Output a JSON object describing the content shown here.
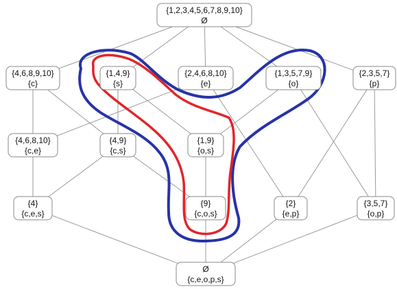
{
  "lattice": {
    "nodes": [
      {
        "id": "top",
        "extent": "{1,2,3,4,5,6,7,8,9,10}",
        "intent": "Ø"
      },
      {
        "id": "c",
        "extent": "{4,6,8,9,10}",
        "intent": "{c}"
      },
      {
        "id": "s",
        "extent": "{1,4,9}",
        "intent": "{s}"
      },
      {
        "id": "e",
        "extent": "{2,4,6,8,10}",
        "intent": "{e}"
      },
      {
        "id": "o",
        "extent": "{1,3,5,7,9}",
        "intent": "{o}"
      },
      {
        "id": "p",
        "extent": "{2,3,5,7}",
        "intent": "{p}"
      },
      {
        "id": "ce",
        "extent": "{4,6,8,10}",
        "intent": "{c,e}"
      },
      {
        "id": "cs",
        "extent": "{4,9}",
        "intent": "{c,s}"
      },
      {
        "id": "os",
        "extent": "{1,9}",
        "intent": "{o,s}"
      },
      {
        "id": "ces",
        "extent": "{4}",
        "intent": "{c,e,s}"
      },
      {
        "id": "cos",
        "extent": "{9}",
        "intent": "{c,o,s}"
      },
      {
        "id": "ep",
        "extent": "{2}",
        "intent": "{e,p}"
      },
      {
        "id": "op",
        "extent": "{3,5,7}",
        "intent": "{o,p}"
      },
      {
        "id": "bot",
        "extent": "Ø",
        "intent": "{c,e,o,p,s}"
      }
    ],
    "edges": [
      [
        "top",
        "c"
      ],
      [
        "top",
        "s"
      ],
      [
        "top",
        "e"
      ],
      [
        "top",
        "o"
      ],
      [
        "top",
        "p"
      ],
      [
        "c",
        "ce"
      ],
      [
        "c",
        "cs"
      ],
      [
        "s",
        "cs"
      ],
      [
        "s",
        "os"
      ],
      [
        "e",
        "ce"
      ],
      [
        "e",
        "ep"
      ],
      [
        "o",
        "os"
      ],
      [
        "o",
        "op"
      ],
      [
        "p",
        "ep"
      ],
      [
        "p",
        "op"
      ],
      [
        "ce",
        "ces"
      ],
      [
        "cs",
        "ces"
      ],
      [
        "cs",
        "cos"
      ],
      [
        "os",
        "cos"
      ],
      [
        "ces",
        "bot"
      ],
      [
        "cos",
        "bot"
      ],
      [
        "ep",
        "bot"
      ],
      [
        "op",
        "bot"
      ]
    ]
  },
  "highlights": {
    "blue": {
      "color": "#2733a8"
    },
    "red": {
      "color": "#e0262a"
    }
  }
}
